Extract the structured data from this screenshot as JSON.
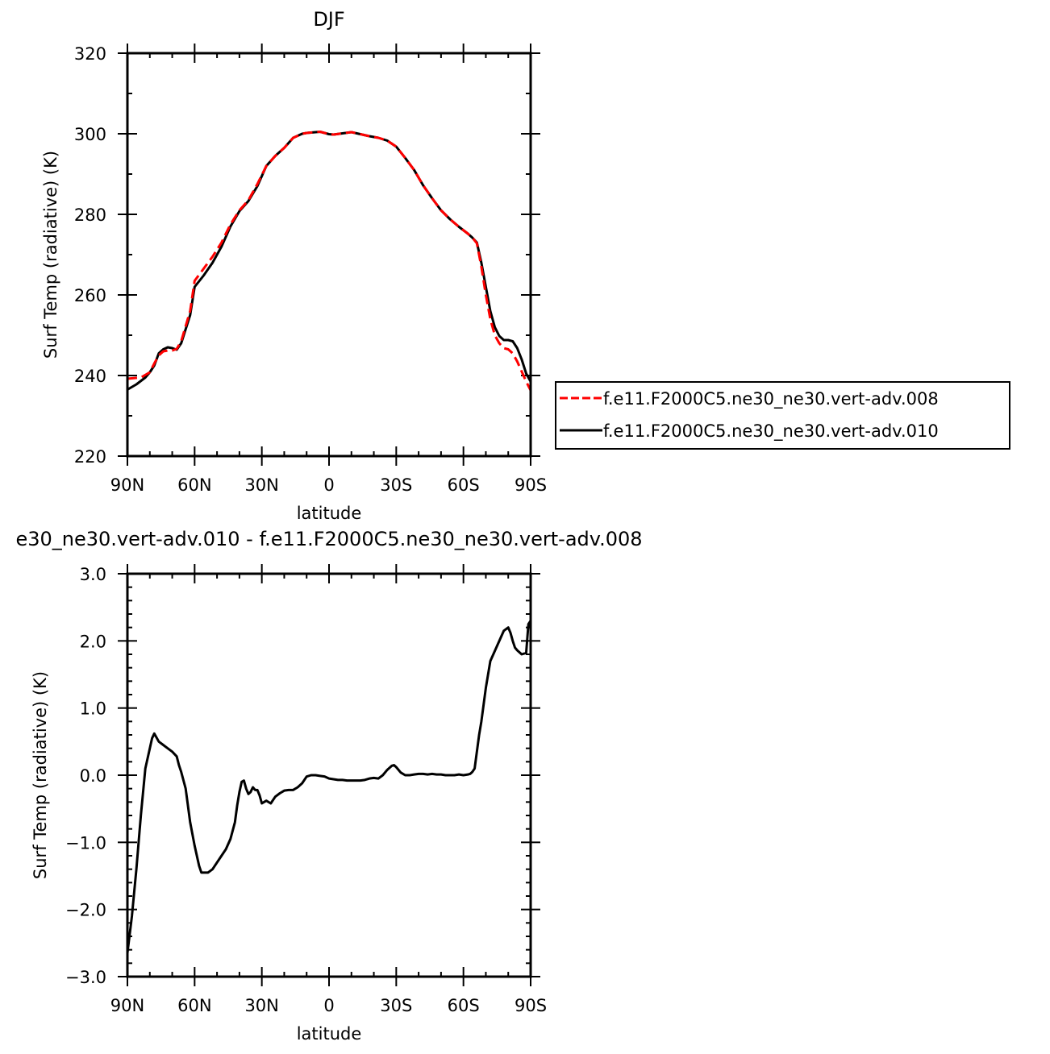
{
  "chart_data": [
    {
      "type": "line",
      "title": "DJF",
      "xlabel": "latitude",
      "ylabel": "Surf Temp (radiative) (K)",
      "xlim": [
        -90,
        90
      ],
      "ylim": [
        220,
        320
      ],
      "x_note": "x in degrees latitude, 90N = -90 (left) to 90S = +90 (right)",
      "xticks": [
        {
          "v": -90,
          "label": "90N"
        },
        {
          "v": -60,
          "label": "60N"
        },
        {
          "v": -30,
          "label": "30N"
        },
        {
          "v": 0,
          "label": "0"
        },
        {
          "v": 30,
          "label": "30S"
        },
        {
          "v": 60,
          "label": "60S"
        },
        {
          "v": 90,
          "label": "90S"
        }
      ],
      "yticks": [
        {
          "v": 220,
          "label": "220"
        },
        {
          "v": 240,
          "label": "240"
        },
        {
          "v": 260,
          "label": "260"
        },
        {
          "v": 280,
          "label": "280"
        },
        {
          "v": 300,
          "label": "300"
        },
        {
          "v": 320,
          "label": "320"
        }
      ],
      "legend_position": "right",
      "series": [
        {
          "name": "f.e11.F2000C5.ne30_ne30.vert-adv.008",
          "color": "#ff0000",
          "dash": "dashed",
          "x": [
            -90,
            -84,
            -80,
            -78,
            -76,
            -74,
            -72,
            -70,
            -68,
            -66,
            -62,
            -60,
            -56,
            -52,
            -48,
            -44,
            -40,
            -36,
            -32,
            -28,
            -24,
            -20,
            -16,
            -12,
            -10,
            -8,
            -4,
            0,
            2,
            6,
            10,
            14,
            18,
            22,
            26,
            30,
            34,
            38,
            42,
            46,
            50,
            54,
            58,
            62,
            64,
            66,
            68,
            70,
            72,
            74,
            76,
            78,
            80,
            82,
            84,
            86,
            88,
            90
          ],
          "y": [
            239.2,
            239.5,
            240.8,
            243.0,
            245.0,
            246.0,
            246.2,
            246.2,
            246.6,
            248.5,
            256.0,
            263.5,
            266.5,
            269.5,
            273.0,
            277.5,
            281.0,
            283.5,
            287.5,
            292.0,
            294.5,
            296.5,
            299.0,
            300.0,
            300.2,
            300.3,
            300.5,
            299.9,
            299.8,
            300.1,
            300.4,
            299.9,
            299.4,
            299.0,
            298.3,
            296.8,
            294.0,
            291.0,
            287.2,
            284.0,
            281.0,
            278.8,
            276.9,
            275.2,
            274.2,
            272.8,
            267.0,
            260.0,
            254.0,
            250.0,
            248.0,
            246.8,
            246.5,
            245.5,
            243.5,
            241.0,
            238.5,
            236.3
          ]
        },
        {
          "name": "f.e11.F2000C5.ne30_ne30.vert-adv.010",
          "color": "#000000",
          "dash": "solid",
          "x": [
            -90,
            -86,
            -82,
            -80,
            -78,
            -76,
            -74,
            -72,
            -70,
            -68,
            -66,
            -62,
            -60,
            -56,
            -52,
            -48,
            -44,
            -40,
            -36,
            -32,
            -28,
            -24,
            -20,
            -16,
            -12,
            -10,
            -8,
            -4,
            0,
            2,
            6,
            10,
            14,
            18,
            22,
            26,
            30,
            34,
            38,
            42,
            46,
            50,
            54,
            58,
            62,
            64,
            66,
            68,
            70,
            72,
            74,
            76,
            78,
            80,
            82,
            84,
            86,
            88,
            90
          ],
          "y": [
            236.5,
            237.8,
            239.5,
            240.8,
            242.5,
            245.5,
            246.5,
            247.0,
            246.8,
            246.4,
            248.0,
            255.0,
            262.0,
            264.8,
            268.0,
            272.0,
            277.0,
            280.8,
            283.3,
            287.0,
            292.0,
            294.5,
            296.5,
            299.0,
            300.0,
            300.2,
            300.3,
            300.5,
            299.9,
            299.8,
            300.1,
            300.4,
            299.9,
            299.4,
            299.0,
            298.3,
            296.8,
            294.0,
            291.0,
            287.2,
            284.0,
            281.0,
            278.8,
            276.9,
            275.2,
            274.2,
            273.0,
            268.0,
            262.0,
            256.0,
            252.0,
            249.8,
            248.8,
            248.8,
            248.5,
            246.8,
            244.0,
            240.5,
            238.5
          ]
        }
      ]
    },
    {
      "type": "line",
      "title": "e30_ne30.vert-adv.010 - f.e11.F2000C5.ne30_ne30.vert-adv.008",
      "xlabel": "latitude",
      "ylabel": "Surf Temp (radiative) (K)",
      "xlim": [
        -90,
        90
      ],
      "ylim": [
        -3.0,
        3.0
      ],
      "x_note": "x in degrees latitude, 90N = -90 (left) to 90S = +90 (right)",
      "xticks": [
        {
          "v": -90,
          "label": "90N"
        },
        {
          "v": -60,
          "label": "60N"
        },
        {
          "v": -30,
          "label": "30N"
        },
        {
          "v": 0,
          "label": "0"
        },
        {
          "v": 30,
          "label": "30S"
        },
        {
          "v": 60,
          "label": "60S"
        },
        {
          "v": 90,
          "label": "90S"
        }
      ],
      "yticks": [
        {
          "v": -3.0,
          "label": "−3.0"
        },
        {
          "v": -2.0,
          "label": "−2.0"
        },
        {
          "v": -1.0,
          "label": "−1.0"
        },
        {
          "v": 0.0,
          "label": "0.0"
        },
        {
          "v": 1.0,
          "label": "1.0"
        },
        {
          "v": 2.0,
          "label": "2.0"
        },
        {
          "v": 3.0,
          "label": "3.0"
        }
      ],
      "series": [
        {
          "color": "#000000",
          "dash": "solid",
          "x": [
            -90,
            -88,
            -86,
            -84,
            -82,
            -80,
            -79,
            -78,
            -77,
            -76,
            -74,
            -72,
            -70,
            -68,
            -67,
            -66,
            -64,
            -62,
            -60,
            -58,
            -57,
            -56,
            -55,
            -54,
            -52,
            -50,
            -48,
            -46,
            -44,
            -42,
            -41,
            -40,
            -39,
            -38,
            -37,
            -36,
            -35,
            -34,
            -33,
            -32,
            -31,
            -30,
            -29,
            -28,
            -26,
            -24,
            -22,
            -20,
            -18,
            -16,
            -14,
            -12,
            -10,
            -8,
            -6,
            -4,
            -2,
            0,
            2,
            4,
            6,
            8,
            10,
            12,
            14,
            16,
            18,
            20,
            22,
            24,
            26,
            28,
            29,
            30,
            32,
            34,
            36,
            38,
            40,
            42,
            44,
            46,
            48,
            50,
            52,
            54,
            56,
            58,
            60,
            62,
            63,
            64,
            65,
            66,
            67,
            68,
            70,
            72,
            74,
            76,
            78,
            80,
            81,
            82,
            83,
            84,
            86,
            88,
            89,
            90
          ],
          "y": [
            -2.65,
            -2.1,
            -1.4,
            -0.6,
            0.1,
            0.4,
            0.55,
            0.62,
            0.56,
            0.5,
            0.45,
            0.4,
            0.35,
            0.28,
            0.15,
            0.05,
            -0.2,
            -0.7,
            -1.05,
            -1.35,
            -1.45,
            -1.45,
            -1.45,
            -1.45,
            -1.4,
            -1.3,
            -1.2,
            -1.1,
            -0.95,
            -0.7,
            -0.45,
            -0.25,
            -0.1,
            -0.08,
            -0.2,
            -0.28,
            -0.25,
            -0.18,
            -0.22,
            -0.22,
            -0.3,
            -0.42,
            -0.4,
            -0.38,
            -0.42,
            -0.32,
            -0.27,
            -0.23,
            -0.22,
            -0.22,
            -0.18,
            -0.12,
            -0.02,
            0.0,
            0.0,
            -0.01,
            -0.02,
            -0.05,
            -0.06,
            -0.07,
            -0.07,
            -0.08,
            -0.08,
            -0.08,
            -0.08,
            -0.07,
            -0.05,
            -0.04,
            -0.05,
            0.0,
            0.08,
            0.14,
            0.15,
            0.12,
            0.04,
            0.0,
            0.0,
            0.01,
            0.02,
            0.02,
            0.01,
            0.02,
            0.01,
            0.01,
            0.0,
            0.0,
            0.0,
            0.01,
            0.0,
            0.01,
            0.02,
            0.05,
            0.1,
            0.35,
            0.6,
            0.8,
            1.3,
            1.7,
            1.85,
            2.0,
            2.15,
            2.2,
            2.12,
            2.0,
            1.9,
            1.86,
            1.8,
            1.82,
            2.25,
            2.3
          ]
        }
      ]
    }
  ],
  "legend": {
    "entries": [
      {
        "label": "f.e11.F2000C5.ne30_ne30.vert-adv.008",
        "color": "#ff0000",
        "dash": "dashed"
      },
      {
        "label": "f.e11.F2000C5.ne30_ne30.vert-adv.010",
        "color": "#000000",
        "dash": "solid"
      }
    ]
  }
}
